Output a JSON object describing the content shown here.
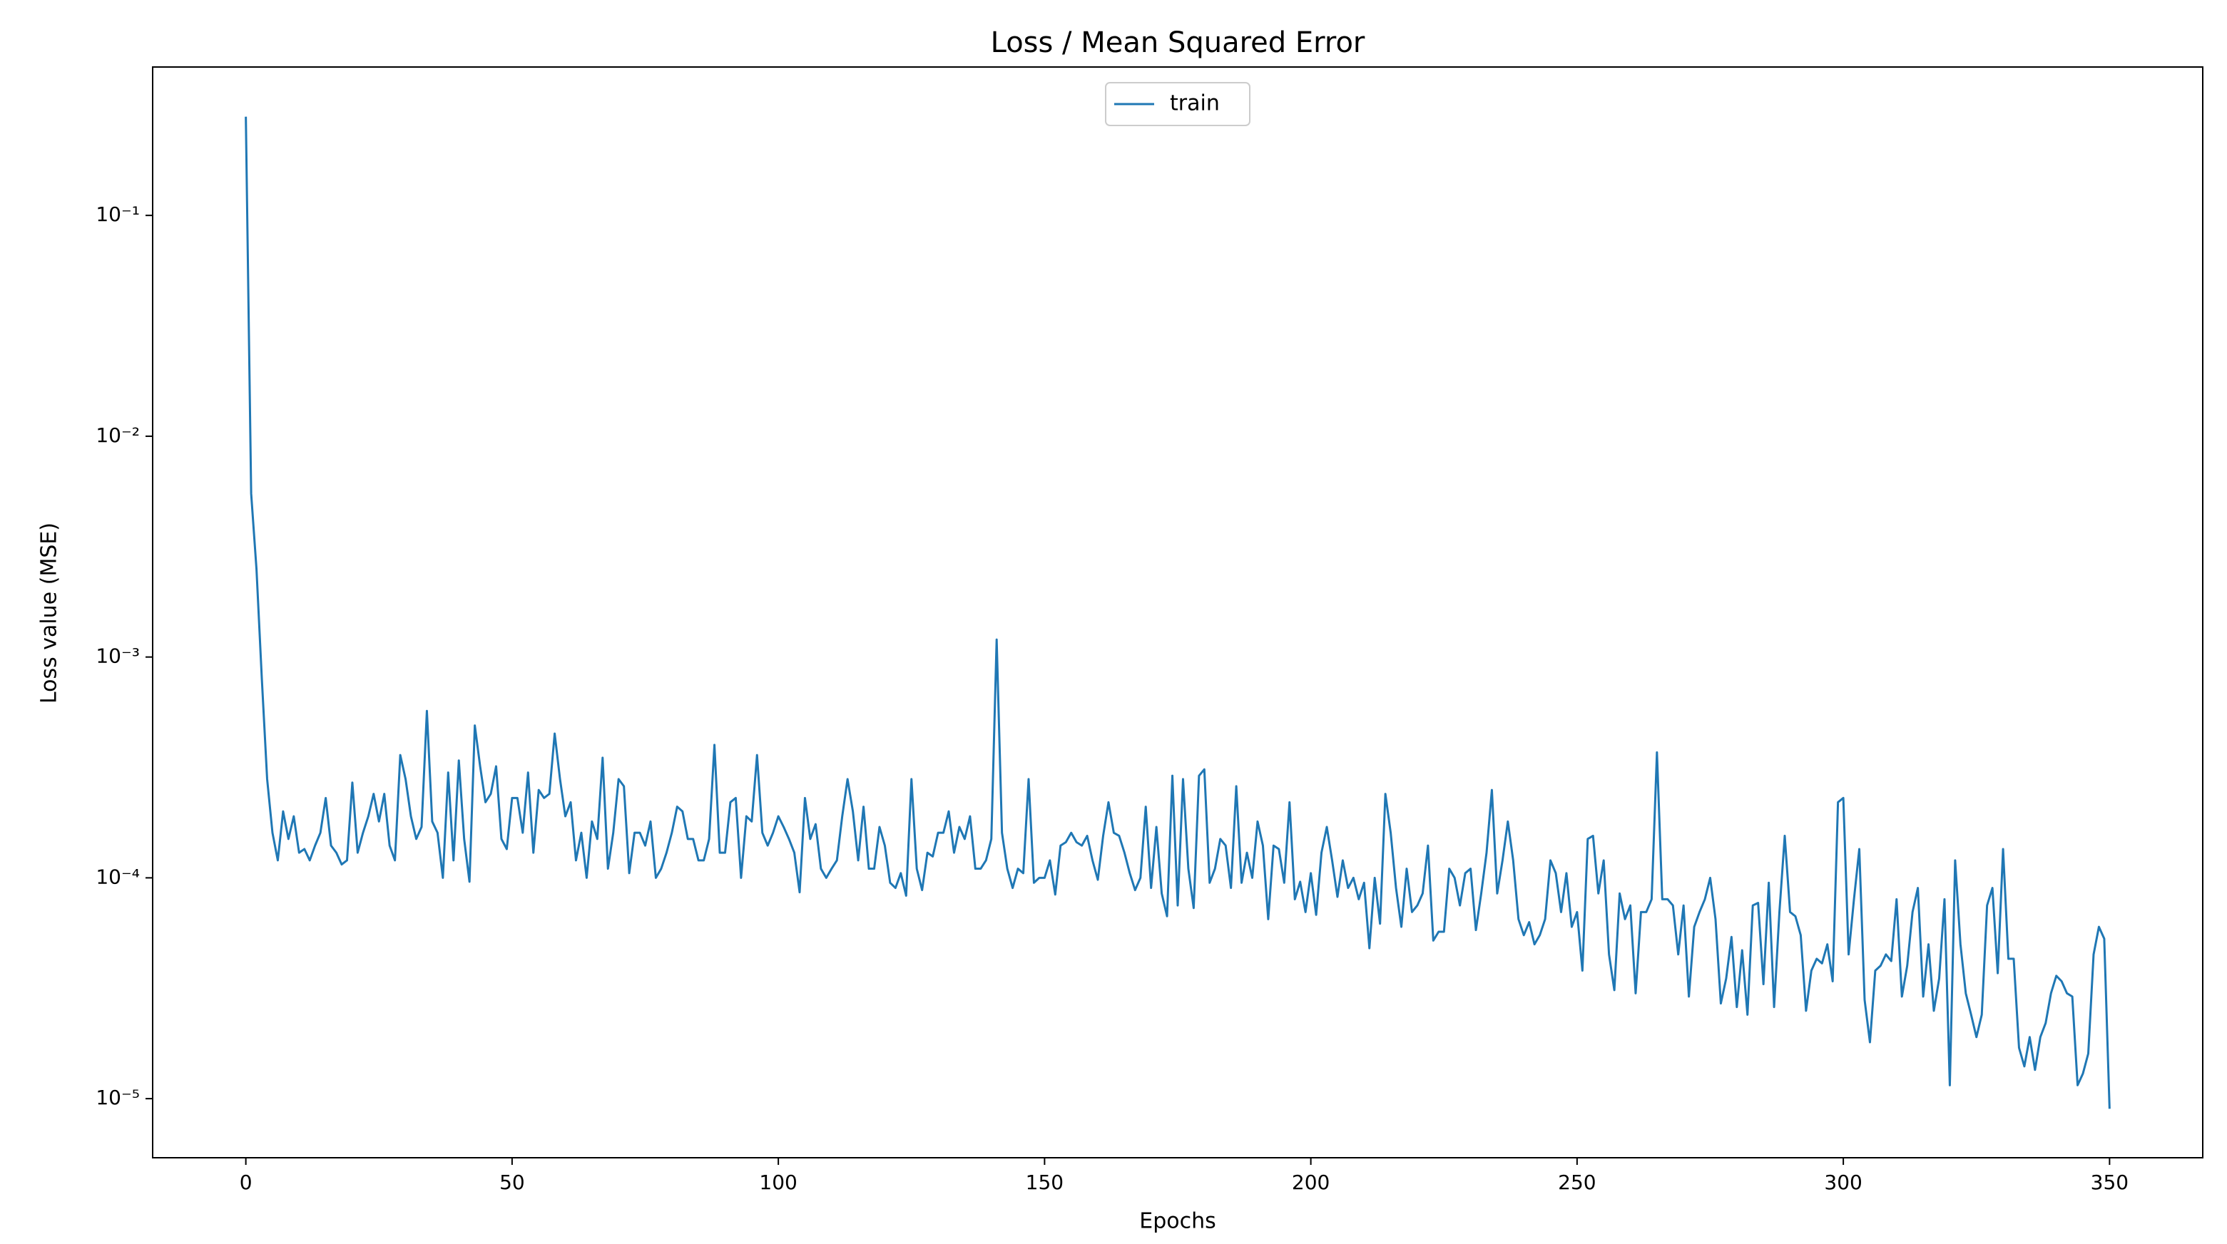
{
  "chart_data": {
    "type": "line",
    "title": "Loss / Mean Squared Error",
    "xlabel": "Epochs",
    "ylabel": "Loss value (MSE)",
    "yscale": "log",
    "legend": "upper center",
    "xlim": [
      -17.5,
      367.5
    ],
    "xticks": [
      0,
      50,
      100,
      150,
      200,
      250,
      300,
      350
    ],
    "ylim": [
      5.4e-06,
      0.47
    ],
    "yticks": [
      {
        "value": 0.1,
        "label": "10⁻¹"
      },
      {
        "value": 0.01,
        "label": "10⁻²"
      },
      {
        "value": 0.001,
        "label": "10⁻³"
      },
      {
        "value": 0.0001,
        "label": "10⁻⁴"
      },
      {
        "value": 1e-05,
        "label": "10⁻⁵"
      }
    ],
    "x": [
      0,
      1,
      2,
      3,
      4,
      5,
      6,
      7,
      8,
      9,
      10,
      11,
      12,
      13,
      14,
      15,
      16,
      17,
      18,
      19,
      20,
      21,
      22,
      23,
      24,
      25,
      26,
      27,
      28,
      29,
      30,
      31,
      32,
      33,
      34,
      35,
      36,
      37,
      38,
      39,
      40,
      41,
      42,
      43,
      44,
      45,
      46,
      47,
      48,
      49,
      50,
      51,
      52,
      53,
      54,
      55,
      56,
      57,
      58,
      59,
      60,
      61,
      62,
      63,
      64,
      65,
      66,
      67,
      68,
      69,
      70,
      71,
      72,
      73,
      74,
      75,
      76,
      77,
      78,
      79,
      80,
      81,
      82,
      83,
      84,
      85,
      86,
      87,
      88,
      89,
      90,
      91,
      92,
      93,
      94,
      95,
      96,
      97,
      98,
      99,
      100,
      101,
      102,
      103,
      104,
      105,
      106,
      107,
      108,
      109,
      110,
      111,
      112,
      113,
      114,
      115,
      116,
      117,
      118,
      119,
      120,
      121,
      122,
      123,
      124,
      125,
      126,
      127,
      128,
      129,
      130,
      131,
      132,
      133,
      134,
      135,
      136,
      137,
      138,
      139,
      140,
      141,
      142,
      143,
      144,
      145,
      146,
      147,
      148,
      149,
      150,
      151,
      152,
      153,
      154,
      155,
      156,
      157,
      158,
      159,
      160,
      161,
      162,
      163,
      164,
      165,
      166,
      167,
      168,
      169,
      170,
      171,
      172,
      173,
      174,
      175,
      176,
      177,
      178,
      179,
      180,
      181,
      182,
      183,
      184,
      185,
      186,
      187,
      188,
      189,
      190,
      191,
      192,
      193,
      194,
      195,
      196,
      197,
      198,
      199,
      200,
      201,
      202,
      203,
      204,
      205,
      206,
      207,
      208,
      209,
      210,
      211,
      212,
      213,
      214,
      215,
      216,
      217,
      218,
      219,
      220,
      221,
      222,
      223,
      224,
      225,
      226,
      227,
      228,
      229,
      230,
      231,
      232,
      233,
      234,
      235,
      236,
      237,
      238,
      239,
      240,
      241,
      242,
      243,
      244,
      245,
      246,
      247,
      248,
      249,
      250,
      251,
      252,
      253,
      254,
      255,
      256,
      257,
      258,
      259,
      260,
      261,
      262,
      263,
      264,
      265,
      266,
      267,
      268,
      269,
      270,
      271,
      272,
      273,
      274,
      275,
      276,
      277,
      278,
      279,
      280,
      281,
      282,
      283,
      284,
      285,
      286,
      287,
      288,
      289,
      290,
      291,
      292,
      293,
      294,
      295,
      296,
      297,
      298,
      299,
      300,
      301,
      302,
      303,
      304,
      305,
      306,
      307,
      308,
      309,
      310,
      311,
      312,
      313,
      314,
      315,
      316,
      317,
      318,
      319,
      320,
      321,
      322,
      323,
      324,
      325,
      326,
      327,
      328,
      329,
      330,
      331,
      332,
      333,
      334,
      335,
      336,
      337,
      338,
      339,
      340,
      341,
      342,
      343,
      344,
      345,
      346,
      347,
      348,
      349,
      350
    ],
    "series": [
      {
        "name": "train",
        "color": "#1f77b4",
        "values": [
          0.28,
          0.0055,
          0.0025,
          0.0008,
          0.00028,
          0.00016,
          0.00012,
          0.0002,
          0.00015,
          0.00019,
          0.00013,
          0.000135,
          0.00012,
          0.00014,
          0.00016,
          0.00023,
          0.00014,
          0.00013,
          0.000115,
          0.00012,
          0.00027,
          0.00013,
          0.00016,
          0.00019,
          0.00024,
          0.00018,
          0.00024,
          0.00014,
          0.00012,
          0.00036,
          0.00028,
          0.00019,
          0.00015,
          0.00017,
          0.00057,
          0.00018,
          0.00016,
          0.0001,
          0.0003,
          0.00012,
          0.00034,
          0.00015,
          9.6e-05,
          0.00049,
          0.00032,
          0.00022,
          0.00024,
          0.00032,
          0.00015,
          0.000135,
          0.00023,
          0.00023,
          0.00016,
          0.0003,
          0.00013,
          0.00025,
          0.00023,
          0.00024,
          0.00045,
          0.00028,
          0.00019,
          0.00022,
          0.00012,
          0.00016,
          0.0001,
          0.00018,
          0.00015,
          0.00035,
          0.00011,
          0.00016,
          0.00028,
          0.00026,
          0.000105,
          0.00016,
          0.00016,
          0.00014,
          0.00018,
          0.0001,
          0.00011,
          0.00013,
          0.00016,
          0.00021,
          0.0002,
          0.00015,
          0.00015,
          0.00012,
          0.00012,
          0.00015,
          0.0004,
          0.00013,
          0.00013,
          0.00022,
          0.00023,
          0.0001,
          0.00019,
          0.00018,
          0.00036,
          0.00016,
          0.00014,
          0.00016,
          0.00019,
          0.00017,
          0.00015,
          0.00013,
          8.6e-05,
          0.00023,
          0.00015,
          0.000175,
          0.00011,
          0.0001,
          0.00011,
          0.00012,
          0.00019,
          0.00028,
          0.0002,
          0.00012,
          0.00021,
          0.00011,
          0.00011,
          0.00017,
          0.00014,
          9.5e-05,
          9e-05,
          0.000105,
          8.3e-05,
          0.00028,
          0.00011,
          8.8e-05,
          0.00013,
          0.000125,
          0.00016,
          0.00016,
          0.0002,
          0.00013,
          0.00017,
          0.00015,
          0.00019,
          0.00011,
          0.00011,
          0.00012,
          0.00015,
          0.0012,
          0.00016,
          0.00011,
          9e-05,
          0.00011,
          0.000105,
          0.00028,
          9.5e-05,
          0.0001,
          0.0001,
          0.00012,
          8.4e-05,
          0.00014,
          0.000145,
          0.00016,
          0.000145,
          0.00014,
          0.000155,
          0.00012,
          9.8e-05,
          0.000155,
          0.00022,
          0.00016,
          0.000155,
          0.00013,
          0.000105,
          8.8e-05,
          0.0001,
          0.00021,
          9e-05,
          0.00017,
          8.5e-05,
          6.7e-05,
          0.00029,
          7.5e-05,
          0.00028,
          0.00011,
          7.3e-05,
          0.00029,
          0.00031,
          9.5e-05,
          0.00011,
          0.00015,
          0.00014,
          9e-05,
          0.00026,
          9.5e-05,
          0.00013,
          0.0001,
          0.00018,
          0.00014,
          6.5e-05,
          0.00014,
          0.000135,
          9.5e-05,
          0.00022,
          8e-05,
          9.6e-05,
          7e-05,
          0.000105,
          6.8e-05,
          0.00013,
          0.00017,
          0.00012,
          8.2e-05,
          0.00012,
          9e-05,
          0.0001,
          8e-05,
          9.5e-05,
          4.8e-05,
          0.0001,
          6.2e-05,
          0.00024,
          0.00016,
          9e-05,
          6e-05,
          0.00011,
          7e-05,
          7.5e-05,
          8.5e-05,
          0.00014,
          5.2e-05,
          5.7e-05,
          5.7e-05,
          0.00011,
          0.0001,
          7.5e-05,
          0.000105,
          0.00011,
          5.8e-05,
          8.5e-05,
          0.00013,
          0.00025,
          8.5e-05,
          0.00012,
          0.00018,
          0.00012,
          6.5e-05,
          5.5e-05,
          6.3e-05,
          5e-05,
          5.5e-05,
          6.5e-05,
          0.00012,
          0.000105,
          7e-05,
          0.000105,
          6e-05,
          7e-05,
          3.8e-05,
          0.00015,
          0.000155,
          8.5e-05,
          0.00012,
          4.5e-05,
          3.1e-05,
          8.5e-05,
          6.5e-05,
          7.5e-05,
          3e-05,
          7e-05,
          7e-05,
          8e-05,
          0.00037,
          8e-05,
          8e-05,
          7.5e-05,
          4.5e-05,
          7.5e-05,
          2.9e-05,
          6e-05,
          7e-05,
          8e-05,
          0.0001,
          6.5e-05,
          2.7e-05,
          3.5e-05,
          5.4e-05,
          2.6e-05,
          4.7e-05,
          2.4e-05,
          7.5e-05,
          7.7e-05,
          3.3e-05,
          9.5e-05,
          2.6e-05,
          7e-05,
          0.000155,
          7e-05,
          6.7e-05,
          5.5e-05,
          2.5e-05,
          3.8e-05,
          4.3e-05,
          4.1e-05,
          5e-05,
          3.4e-05,
          0.00022,
          0.00023,
          4.5e-05,
          8e-05,
          0.000135,
          2.8e-05,
          1.8e-05,
          3.8e-05,
          4e-05,
          4.5e-05,
          4.2e-05,
          8e-05,
          2.9e-05,
          4e-05,
          7e-05,
          9e-05,
          2.9e-05,
          5e-05,
          2.5e-05,
          3.5e-05,
          8e-05,
          1.15e-05,
          0.00012,
          5e-05,
          3e-05,
          2.4e-05,
          1.9e-05,
          2.4e-05,
          7.5e-05,
          9e-05,
          3.7e-05,
          0.000135,
          4.3e-05,
          4.3e-05,
          1.7e-05,
          1.4e-05,
          1.9e-05,
          1.35e-05,
          1.9e-05,
          2.2e-05,
          3e-05,
          3.6e-05,
          3.4e-05,
          3e-05,
          2.9e-05,
          1.15e-05,
          1.3e-05,
          1.6e-05,
          4.5e-05,
          6e-05,
          5.3e-05,
          9e-06
        ]
      }
    ]
  }
}
